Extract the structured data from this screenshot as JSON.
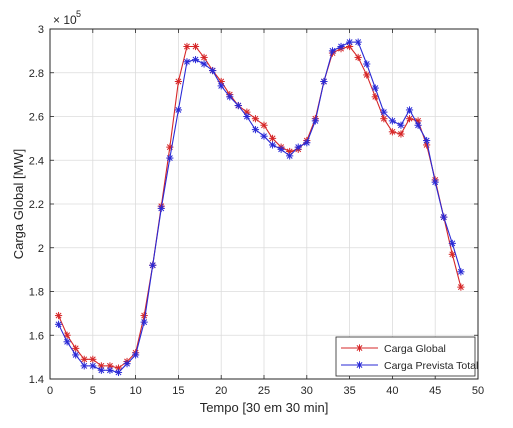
{
  "chart_data": {
    "type": "line",
    "xlabel": "Tempo [30 em 30 min]",
    "ylabel": "Carga Global [MW]",
    "y_multiplier_label": "× 10",
    "y_multiplier_exponent": "5",
    "xlim": [
      0,
      50
    ],
    "ylim": [
      1.4,
      3.0
    ],
    "x_ticks": [
      0,
      5,
      10,
      15,
      20,
      25,
      30,
      35,
      40,
      45,
      50
    ],
    "y_ticks": [
      1.4,
      1.6,
      1.8,
      2.0,
      2.2,
      2.4,
      2.6,
      2.8,
      3.0
    ],
    "x_tick_labels": [
      "0",
      "5",
      "10",
      "15",
      "20",
      "25",
      "30",
      "35",
      "40",
      "45",
      "50"
    ],
    "y_tick_labels": [
      "1.4",
      "1.6",
      "1.8",
      "2",
      "2.2",
      "2.4",
      "2.6",
      "2.8",
      "3"
    ],
    "grid": true,
    "legend_position": "bottom-right",
    "x": [
      1,
      2,
      3,
      4,
      5,
      6,
      7,
      8,
      9,
      10,
      11,
      12,
      13,
      14,
      15,
      16,
      17,
      18,
      19,
      20,
      21,
      22,
      23,
      24,
      25,
      26,
      27,
      28,
      29,
      30,
      31,
      32,
      33,
      34,
      35,
      36,
      37,
      38,
      39,
      40,
      41,
      42,
      43,
      44,
      45,
      46,
      47,
      48
    ],
    "series": [
      {
        "name": "Carga Global",
        "color": "#d62728",
        "marker": "asterisk",
        "values": [
          1.69,
          1.6,
          1.54,
          1.49,
          1.49,
          1.46,
          1.46,
          1.45,
          1.48,
          1.52,
          1.69,
          1.92,
          2.19,
          2.46,
          2.76,
          2.92,
          2.92,
          2.87,
          2.81,
          2.76,
          2.7,
          2.65,
          2.62,
          2.59,
          2.56,
          2.5,
          2.46,
          2.44,
          2.45,
          2.49,
          2.59,
          2.76,
          2.89,
          2.91,
          2.92,
          2.87,
          2.79,
          2.69,
          2.59,
          2.53,
          2.52,
          2.59,
          2.58,
          2.47,
          2.31,
          2.14,
          1.97,
          1.82
        ]
      },
      {
        "name": "Carga Prevista Total",
        "color": "#2a2ad6",
        "marker": "asterisk",
        "values": [
          1.65,
          1.57,
          1.51,
          1.46,
          1.46,
          1.44,
          1.44,
          1.43,
          1.47,
          1.51,
          1.66,
          1.92,
          2.18,
          2.41,
          2.63,
          2.85,
          2.86,
          2.84,
          2.81,
          2.74,
          2.69,
          2.65,
          2.6,
          2.54,
          2.51,
          2.47,
          2.45,
          2.42,
          2.46,
          2.48,
          2.58,
          2.76,
          2.9,
          2.92,
          2.94,
          2.94,
          2.84,
          2.73,
          2.62,
          2.58,
          2.56,
          2.63,
          2.56,
          2.49,
          2.3,
          2.14,
          2.02,
          1.89
        ]
      }
    ]
  }
}
